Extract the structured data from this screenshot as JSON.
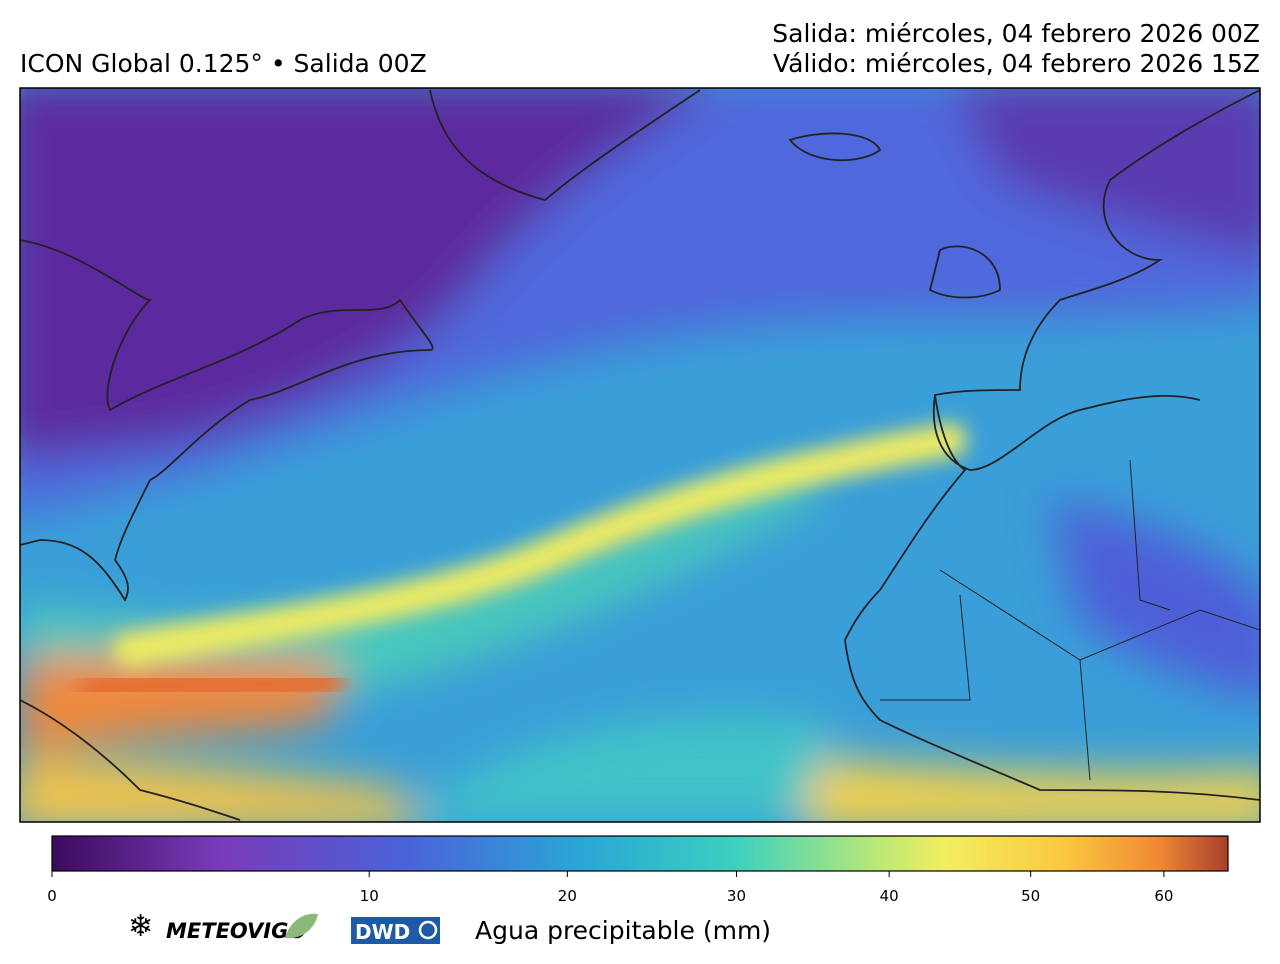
{
  "header": {
    "title": "ICON Global 0.125° • Salida 00Z",
    "run": "Salida: miércoles, 04 febrero 2026 00Z",
    "valid": "Válido: miércoles, 04 febrero 2026 15Z"
  },
  "colorbar": {
    "label": "Agua precipitable (mm)",
    "lim": [
      0,
      65
    ],
    "ticks": [
      0,
      10,
      20,
      30,
      40,
      50,
      60
    ]
  },
  "logos": [
    "METEOVIGO",
    "DWD"
  ]
}
